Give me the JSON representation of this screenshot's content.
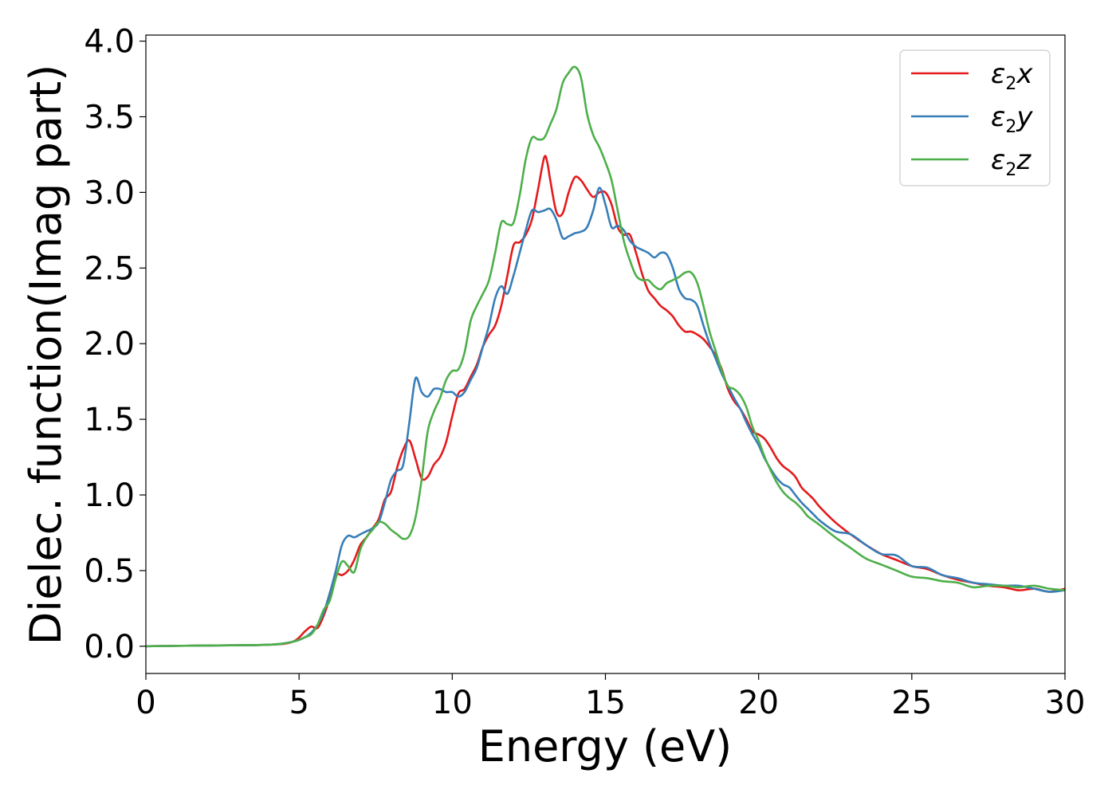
{
  "chart_data": {
    "type": "line",
    "xlabel": "Energy (eV)",
    "ylabel": "Dielec. function(Imag part)",
    "xlim": [
      0,
      30
    ],
    "ylim": [
      -0.18,
      4.04
    ],
    "xticks": [
      0,
      5,
      10,
      15,
      20,
      25,
      30
    ],
    "xtick_labels": [
      "0",
      "5",
      "10",
      "15",
      "20",
      "25",
      "30"
    ],
    "yticks": [
      0.0,
      0.5,
      1.0,
      1.5,
      2.0,
      2.5,
      3.0,
      3.5,
      4.0
    ],
    "ytick_labels": [
      "0.0",
      "0.5",
      "1.0",
      "1.5",
      "2.0",
      "2.5",
      "3.0",
      "3.5",
      "4.0"
    ],
    "grid": false,
    "legend_position": "top-right",
    "series": [
      {
        "name": "ε2x",
        "legend": {
          "base": "ε",
          "sub": "2",
          "tail": "x"
        },
        "color": "#e41a1c",
        "x": [
          0,
          2,
          4,
          4.8,
          5.2,
          5.4,
          5.6,
          5.8,
          6.0,
          6.2,
          6.4,
          6.6,
          6.8,
          7.0,
          7.2,
          7.4,
          7.6,
          7.8,
          8.0,
          8.2,
          8.4,
          8.6,
          8.8,
          9.0,
          9.2,
          9.4,
          9.6,
          9.8,
          10.0,
          10.2,
          10.4,
          10.6,
          10.8,
          11.0,
          11.2,
          11.4,
          11.6,
          11.8,
          12.0,
          12.2,
          12.4,
          12.6,
          12.8,
          13.0,
          13.1,
          13.2,
          13.4,
          13.6,
          13.8,
          14.0,
          14.2,
          14.4,
          14.6,
          14.8,
          15.0,
          15.2,
          15.4,
          15.6,
          15.8,
          16.0,
          16.2,
          16.4,
          16.6,
          16.8,
          17.0,
          17.2,
          17.4,
          17.6,
          17.8,
          18.0,
          18.2,
          18.4,
          18.6,
          18.8,
          19.0,
          19.2,
          19.4,
          19.6,
          19.8,
          20.0,
          20.2,
          20.4,
          20.6,
          20.8,
          21.0,
          21.2,
          21.4,
          21.6,
          21.8,
          22.0,
          22.5,
          23.0,
          23.5,
          24.0,
          24.5,
          25.0,
          25.5,
          26.0,
          26.5,
          27.0,
          27.5,
          28.0,
          28.5,
          29.0,
          29.5,
          30.0
        ],
        "y": [
          0.0,
          0.005,
          0.01,
          0.03,
          0.1,
          0.13,
          0.12,
          0.2,
          0.32,
          0.47,
          0.47,
          0.5,
          0.57,
          0.67,
          0.72,
          0.78,
          0.84,
          0.97,
          1.02,
          1.18,
          1.3,
          1.36,
          1.24,
          1.11,
          1.12,
          1.2,
          1.25,
          1.35,
          1.52,
          1.67,
          1.7,
          1.78,
          1.86,
          1.98,
          2.06,
          2.12,
          2.25,
          2.45,
          2.65,
          2.67,
          2.72,
          2.82,
          3.02,
          3.23,
          3.2,
          3.08,
          2.87,
          2.86,
          3.0,
          3.1,
          3.08,
          3.02,
          2.97,
          3.0,
          3.0,
          2.92,
          2.77,
          2.72,
          2.72,
          2.6,
          2.46,
          2.35,
          2.3,
          2.25,
          2.22,
          2.18,
          2.12,
          2.08,
          2.08,
          2.06,
          2.03,
          1.98,
          1.92,
          1.83,
          1.7,
          1.62,
          1.57,
          1.5,
          1.42,
          1.4,
          1.37,
          1.31,
          1.24,
          1.19,
          1.16,
          1.12,
          1.05,
          1.01,
          0.97,
          0.92,
          0.82,
          0.74,
          0.67,
          0.61,
          0.57,
          0.53,
          0.51,
          0.47,
          0.44,
          0.42,
          0.4,
          0.39,
          0.37,
          0.38,
          0.36,
          0.38
        ]
      },
      {
        "name": "ε2y",
        "legend": {
          "base": "ε",
          "sub": "2",
          "tail": "y"
        },
        "color": "#377eb8",
        "x": [
          0,
          2,
          4,
          4.8,
          5.2,
          5.4,
          5.6,
          5.8,
          6.0,
          6.2,
          6.4,
          6.6,
          6.8,
          7.0,
          7.2,
          7.4,
          7.6,
          7.8,
          8.0,
          8.2,
          8.4,
          8.6,
          8.8,
          9.0,
          9.2,
          9.4,
          9.6,
          9.8,
          10.0,
          10.2,
          10.4,
          10.6,
          10.8,
          11.0,
          11.2,
          11.4,
          11.6,
          11.8,
          12.0,
          12.2,
          12.4,
          12.6,
          12.8,
          13.0,
          13.2,
          13.4,
          13.6,
          13.8,
          14.0,
          14.2,
          14.4,
          14.6,
          14.8,
          15.0,
          15.2,
          15.4,
          15.6,
          15.8,
          16.0,
          16.2,
          16.4,
          16.6,
          16.8,
          17.0,
          17.2,
          17.4,
          17.6,
          17.8,
          18.0,
          18.2,
          18.4,
          18.6,
          18.8,
          19.0,
          19.2,
          19.4,
          19.6,
          19.8,
          20.0,
          20.2,
          20.4,
          20.6,
          20.8,
          21.0,
          21.2,
          21.4,
          21.6,
          21.8,
          22.0,
          22.5,
          23.0,
          23.5,
          24.0,
          24.5,
          25.0,
          25.5,
          26.0,
          26.5,
          27.0,
          27.5,
          28.0,
          28.5,
          29.0,
          29.5,
          30.0
        ],
        "y": [
          0.0,
          0.005,
          0.01,
          0.03,
          0.06,
          0.09,
          0.14,
          0.22,
          0.35,
          0.5,
          0.67,
          0.73,
          0.72,
          0.74,
          0.76,
          0.78,
          0.82,
          0.95,
          1.1,
          1.16,
          1.2,
          1.48,
          1.77,
          1.68,
          1.65,
          1.7,
          1.7,
          1.68,
          1.68,
          1.65,
          1.68,
          1.76,
          1.84,
          1.98,
          2.12,
          2.3,
          2.38,
          2.33,
          2.45,
          2.6,
          2.75,
          2.88,
          2.87,
          2.88,
          2.89,
          2.82,
          2.7,
          2.71,
          2.73,
          2.74,
          2.77,
          2.88,
          3.03,
          2.92,
          2.77,
          2.78,
          2.75,
          2.68,
          2.64,
          2.62,
          2.6,
          2.57,
          2.6,
          2.59,
          2.5,
          2.36,
          2.3,
          2.29,
          2.25,
          2.12,
          2.0,
          1.9,
          1.8,
          1.72,
          1.64,
          1.57,
          1.48,
          1.4,
          1.33,
          1.24,
          1.17,
          1.11,
          1.07,
          1.05,
          1.0,
          0.95,
          0.91,
          0.87,
          0.83,
          0.76,
          0.74,
          0.67,
          0.61,
          0.6,
          0.53,
          0.52,
          0.47,
          0.45,
          0.42,
          0.41,
          0.4,
          0.4,
          0.38,
          0.36,
          0.37
        ]
      },
      {
        "name": "ε2z",
        "legend": {
          "base": "ε",
          "sub": "2",
          "tail": "z"
        },
        "color": "#4daf4a",
        "x": [
          0,
          2,
          4,
          4.8,
          5.2,
          5.4,
          5.6,
          5.8,
          6.0,
          6.2,
          6.4,
          6.6,
          6.8,
          7.0,
          7.2,
          7.4,
          7.6,
          7.8,
          8.0,
          8.2,
          8.4,
          8.6,
          8.8,
          9.0,
          9.2,
          9.4,
          9.6,
          9.8,
          10.0,
          10.2,
          10.4,
          10.6,
          10.8,
          11.0,
          11.2,
          11.4,
          11.6,
          11.8,
          12.0,
          12.2,
          12.4,
          12.6,
          12.8,
          13.0,
          13.2,
          13.4,
          13.6,
          13.8,
          14.0,
          14.2,
          14.4,
          14.6,
          14.8,
          15.0,
          15.2,
          15.4,
          15.6,
          15.8,
          16.0,
          16.2,
          16.4,
          16.6,
          16.8,
          17.0,
          17.2,
          17.4,
          17.6,
          17.8,
          18.0,
          18.2,
          18.4,
          18.6,
          18.8,
          19.0,
          19.2,
          19.4,
          19.6,
          19.8,
          20.0,
          20.2,
          20.4,
          20.6,
          20.8,
          21.0,
          21.2,
          21.4,
          21.6,
          21.8,
          22.0,
          22.5,
          23.0,
          23.5,
          24.0,
          24.5,
          25.0,
          25.5,
          26.0,
          26.5,
          27.0,
          27.5,
          28.0,
          28.5,
          29.0,
          29.5,
          30.0
        ],
        "y": [
          0.0,
          0.005,
          0.01,
          0.03,
          0.06,
          0.08,
          0.14,
          0.24,
          0.3,
          0.45,
          0.56,
          0.53,
          0.49,
          0.64,
          0.72,
          0.77,
          0.82,
          0.81,
          0.77,
          0.74,
          0.71,
          0.73,
          0.85,
          1.1,
          1.42,
          1.55,
          1.64,
          1.76,
          1.82,
          1.83,
          1.94,
          2.15,
          2.25,
          2.33,
          2.42,
          2.6,
          2.8,
          2.79,
          2.8,
          2.98,
          3.22,
          3.36,
          3.35,
          3.36,
          3.45,
          3.55,
          3.72,
          3.79,
          3.83,
          3.76,
          3.52,
          3.38,
          3.3,
          3.2,
          3.08,
          2.88,
          2.68,
          2.55,
          2.45,
          2.42,
          2.42,
          2.38,
          2.36,
          2.4,
          2.42,
          2.44,
          2.47,
          2.47,
          2.4,
          2.25,
          2.08,
          1.95,
          1.82,
          1.72,
          1.7,
          1.66,
          1.58,
          1.45,
          1.36,
          1.25,
          1.16,
          1.08,
          1.02,
          0.98,
          0.95,
          0.91,
          0.86,
          0.83,
          0.8,
          0.72,
          0.65,
          0.58,
          0.54,
          0.5,
          0.46,
          0.45,
          0.43,
          0.42,
          0.39,
          0.4,
          0.4,
          0.39,
          0.4,
          0.38,
          0.37
        ]
      }
    ]
  }
}
